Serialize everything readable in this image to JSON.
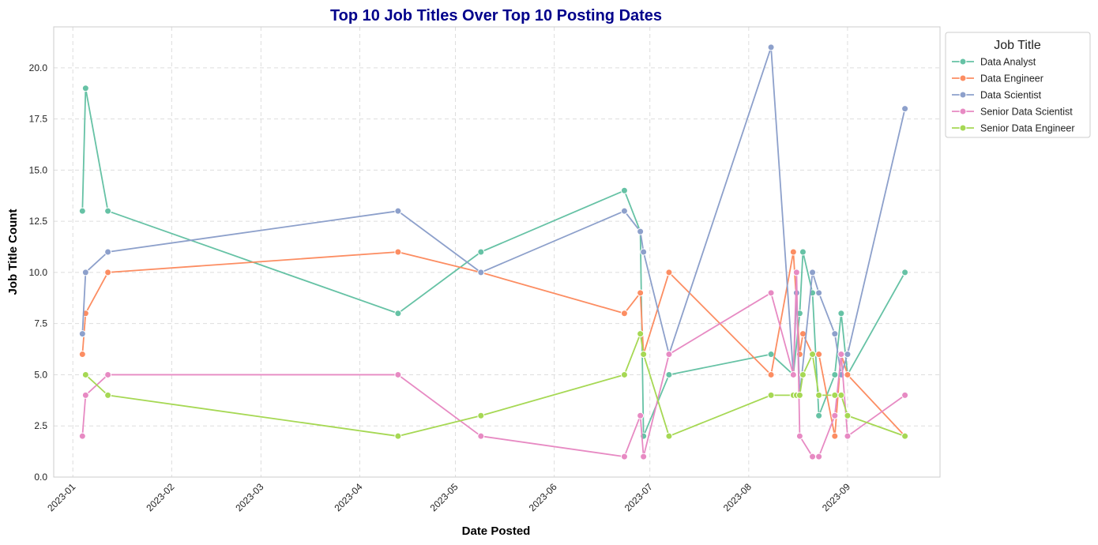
{
  "chart_data": {
    "type": "line",
    "title": "Top 10 Job Titles Over Top 10 Posting Dates",
    "xlabel": "Date Posted",
    "ylabel": "Job Title Count",
    "x_ticks": [
      "2023-01",
      "2023-02",
      "2023-03",
      "2023-04",
      "2023-05",
      "2023-06",
      "2023-07",
      "2023-08",
      "2023-09"
    ],
    "y_ticks": [
      "0.0",
      "2.5",
      "5.0",
      "7.5",
      "10.0",
      "12.5",
      "15.0",
      "17.5",
      "20.0"
    ],
    "xlim": [
      "2022-12-26",
      "2023-09-30"
    ],
    "ylim": [
      0,
      22
    ],
    "grid": true,
    "legend": {
      "title": "Job Title",
      "placement": "outside-top-right"
    },
    "series": [
      {
        "name": "Data Analyst",
        "color": "#66c2a5",
        "points": [
          [
            "2023-01-04",
            13
          ],
          [
            "2023-01-05",
            19
          ],
          [
            "2023-01-12",
            13
          ],
          [
            "2023-04-13",
            8
          ],
          [
            "2023-05-09",
            11
          ],
          [
            "2023-06-23",
            14
          ],
          [
            "2023-06-28",
            12
          ],
          [
            "2023-06-29",
            2
          ],
          [
            "2023-07-07",
            5
          ],
          [
            "2023-08-08",
            6
          ],
          [
            "2023-08-15",
            5
          ],
          [
            "2023-08-17",
            8
          ],
          [
            "2023-08-18",
            11
          ],
          [
            "2023-08-21",
            9
          ],
          [
            "2023-08-23",
            3
          ],
          [
            "2023-08-28",
            5
          ],
          [
            "2023-08-30",
            8
          ],
          [
            "2023-09-01",
            5
          ],
          [
            "2023-09-19",
            10
          ]
        ]
      },
      {
        "name": "Data Engineer",
        "color": "#fc8d62",
        "points": [
          [
            "2023-01-04",
            6
          ],
          [
            "2023-01-05",
            8
          ],
          [
            "2023-01-12",
            10
          ],
          [
            "2023-04-13",
            11
          ],
          [
            "2023-05-09",
            10
          ],
          [
            "2023-06-23",
            8
          ],
          [
            "2023-06-28",
            9
          ],
          [
            "2023-06-29",
            6
          ],
          [
            "2023-07-07",
            10
          ],
          [
            "2023-08-08",
            5
          ],
          [
            "2023-08-15",
            11
          ],
          [
            "2023-08-17",
            6
          ],
          [
            "2023-08-18",
            7
          ],
          [
            "2023-08-21",
            6
          ],
          [
            "2023-08-23",
            6
          ],
          [
            "2023-08-28",
            2
          ],
          [
            "2023-08-30",
            6
          ],
          [
            "2023-09-01",
            5
          ],
          [
            "2023-09-19",
            2
          ]
        ]
      },
      {
        "name": "Data Scientist",
        "color": "#8da0cb",
        "points": [
          [
            "2023-01-04",
            7
          ],
          [
            "2023-01-05",
            10
          ],
          [
            "2023-01-12",
            11
          ],
          [
            "2023-04-13",
            13
          ],
          [
            "2023-05-09",
            10
          ],
          [
            "2023-06-23",
            13
          ],
          [
            "2023-06-28",
            12
          ],
          [
            "2023-06-29",
            11
          ],
          [
            "2023-07-07",
            6
          ],
          [
            "2023-08-08",
            21
          ],
          [
            "2023-08-15",
            5
          ],
          [
            "2023-08-16",
            9
          ],
          [
            "2023-08-17",
            4
          ],
          [
            "2023-08-21",
            10
          ],
          [
            "2023-08-23",
            9
          ],
          [
            "2023-08-28",
            7
          ],
          [
            "2023-08-30",
            5
          ],
          [
            "2023-09-01",
            6
          ],
          [
            "2023-09-19",
            18
          ]
        ]
      },
      {
        "name": "Senior Data Scientist",
        "color": "#e78ac3",
        "points": [
          [
            "2023-01-04",
            2
          ],
          [
            "2023-01-05",
            4
          ],
          [
            "2023-01-12",
            5
          ],
          [
            "2023-04-13",
            5
          ],
          [
            "2023-05-09",
            2
          ],
          [
            "2023-06-23",
            1
          ],
          [
            "2023-06-28",
            3
          ],
          [
            "2023-06-29",
            1
          ],
          [
            "2023-07-07",
            6
          ],
          [
            "2023-08-08",
            9
          ],
          [
            "2023-08-15",
            5
          ],
          [
            "2023-08-16",
            10
          ],
          [
            "2023-08-17",
            2
          ],
          [
            "2023-08-21",
            1
          ],
          [
            "2023-08-23",
            1
          ],
          [
            "2023-08-28",
            3
          ],
          [
            "2023-08-30",
            6
          ],
          [
            "2023-09-01",
            2
          ],
          [
            "2023-09-19",
            4
          ]
        ]
      },
      {
        "name": "Senior Data Engineer",
        "color": "#a6d854",
        "points": [
          [
            "2023-01-05",
            5
          ],
          [
            "2023-01-12",
            4
          ],
          [
            "2023-04-13",
            2
          ],
          [
            "2023-05-09",
            3
          ],
          [
            "2023-06-23",
            5
          ],
          [
            "2023-06-28",
            7
          ],
          [
            "2023-06-29",
            6
          ],
          [
            "2023-07-07",
            2
          ],
          [
            "2023-08-08",
            4
          ],
          [
            "2023-08-15",
            4
          ],
          [
            "2023-08-16",
            4
          ],
          [
            "2023-08-17",
            4
          ],
          [
            "2023-08-18",
            5
          ],
          [
            "2023-08-21",
            6
          ],
          [
            "2023-08-23",
            4
          ],
          [
            "2023-08-28",
            4
          ],
          [
            "2023-08-30",
            4
          ],
          [
            "2023-09-01",
            3
          ],
          [
            "2023-09-19",
            2
          ]
        ]
      }
    ]
  }
}
